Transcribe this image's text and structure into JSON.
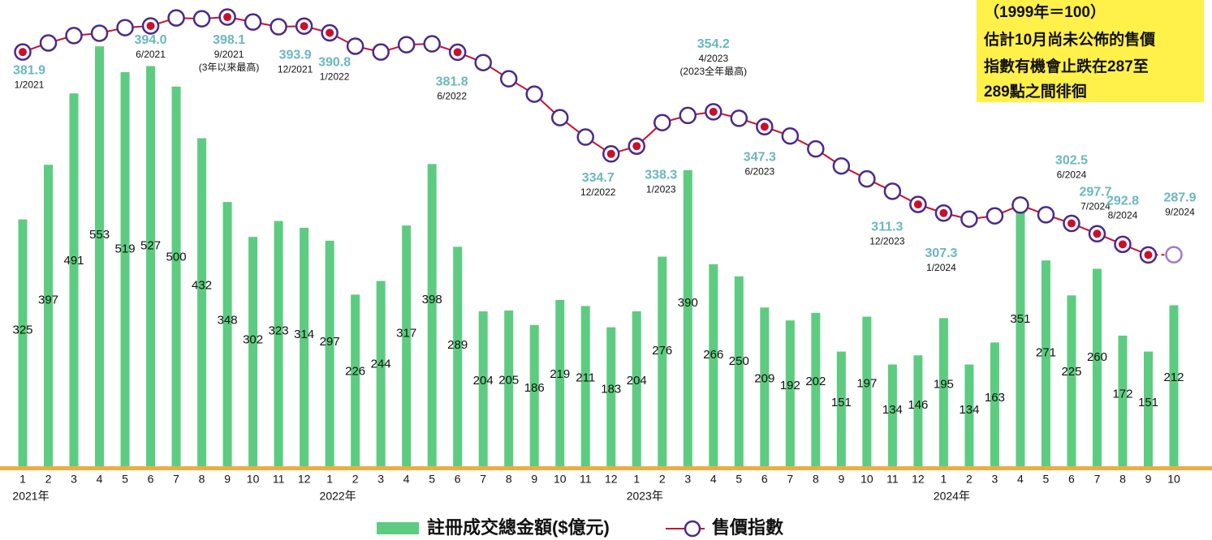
{
  "chart_data": {
    "type": "bar-line",
    "categories": [
      "1",
      "2",
      "3",
      "4",
      "5",
      "6",
      "7",
      "8",
      "9",
      "10",
      "11",
      "12",
      "1",
      "2",
      "3",
      "4",
      "5",
      "6",
      "7",
      "8",
      "9",
      "10",
      "11",
      "12",
      "1",
      "2",
      "3",
      "4",
      "5",
      "6",
      "7",
      "8",
      "9",
      "10",
      "11",
      "12",
      "1",
      "2",
      "3",
      "4",
      "5",
      "6",
      "7",
      "8",
      "9",
      "10"
    ],
    "year_labels": [
      "2021年",
      null,
      null,
      null,
      null,
      null,
      null,
      null,
      null,
      null,
      null,
      null,
      "2022年",
      null,
      null,
      null,
      null,
      null,
      null,
      null,
      null,
      null,
      null,
      null,
      "2023年",
      null,
      null,
      null,
      null,
      null,
      null,
      null,
      null,
      null,
      null,
      null,
      "2024年",
      null,
      null,
      null,
      null,
      null,
      null,
      null,
      null,
      null
    ],
    "ylim": [
      0,
      614
    ],
    "y2lim": [
      190,
      406
    ],
    "series": [
      {
        "name": "註冊成交總金額($億元)",
        "type": "bar",
        "color": "#5dcc80",
        "values": [
          325,
          397,
          491,
          553,
          519,
          527,
          500,
          432,
          348,
          302,
          323,
          314,
          297,
          226,
          244,
          317,
          398,
          289,
          204,
          205,
          186,
          219,
          211,
          183,
          204,
          276,
          390,
          266,
          250,
          209,
          192,
          202,
          151,
          197,
          134,
          146,
          195,
          134,
          163,
          351,
          271,
          225,
          260,
          172,
          151,
          212
        ]
      },
      {
        "name": "售價指數",
        "type": "line",
        "axis": "y2",
        "color": "#c8102e",
        "marker_color": "#4b2a8a",
        "projected_last": true,
        "values": [
          381.9,
          386.1,
          389.5,
          390.6,
          393.2,
          394.0,
          397.7,
          397.3,
          398.1,
          395.8,
          393.6,
          393.9,
          390.8,
          384.6,
          381.9,
          385.3,
          385.7,
          381.8,
          377.0,
          369.5,
          362.4,
          351.5,
          342.5,
          334.7,
          338.3,
          349.2,
          352.5,
          354.2,
          351.2,
          347.3,
          343.0,
          337.0,
          329.1,
          323.1,
          317.4,
          311.3,
          307.3,
          304.5,
          306.0,
          311.0,
          306.5,
          302.5,
          297.7,
          292.8,
          287.9,
          288
        ],
        "value_labels": [
          "381.9",
          null,
          null,
          null,
          null,
          "394.0",
          null,
          null,
          "398.1",
          null,
          null,
          "393.9",
          "390.8",
          null,
          null,
          null,
          null,
          "381.8",
          null,
          null,
          null,
          null,
          null,
          "334.7",
          "338.3",
          null,
          null,
          "354.2",
          null,
          "347.3",
          null,
          null,
          null,
          null,
          null,
          "311.3",
          "307.3",
          null,
          null,
          null,
          null,
          "302.5",
          "297.7",
          "292.8",
          "287.9",
          null
        ],
        "date_labels": [
          "1/2021",
          null,
          null,
          null,
          null,
          "6/2021",
          null,
          null,
          "9/2021",
          null,
          null,
          "12/2021",
          "1/2022",
          null,
          null,
          null,
          null,
          "6/2022",
          null,
          null,
          null,
          null,
          null,
          "12/2022",
          "1/2023",
          null,
          null,
          "4/2023",
          null,
          "6/2023",
          null,
          null,
          null,
          null,
          null,
          "12/2023",
          "1/2024",
          null,
          null,
          null,
          null,
          "6/2024",
          "7/2024",
          "8/2024",
          "9/2024",
          null
        ],
        "notes": [
          null,
          null,
          null,
          null,
          null,
          null,
          null,
          null,
          "(3年以來最高)",
          null,
          null,
          null,
          null,
          null,
          null,
          null,
          null,
          null,
          null,
          null,
          null,
          null,
          null,
          null,
          null,
          null,
          null,
          "(2023全年最高)",
          null,
          null,
          null,
          null,
          null,
          null,
          null,
          null,
          null,
          null,
          null,
          null,
          null,
          null,
          null,
          null,
          null,
          null
        ]
      }
    ],
    "annotation_box": [
      "（1999年＝100）",
      "估計10月尚未公佈的售價",
      "指數有機會止跌在287至",
      "289點之間徘徊"
    ]
  }
}
